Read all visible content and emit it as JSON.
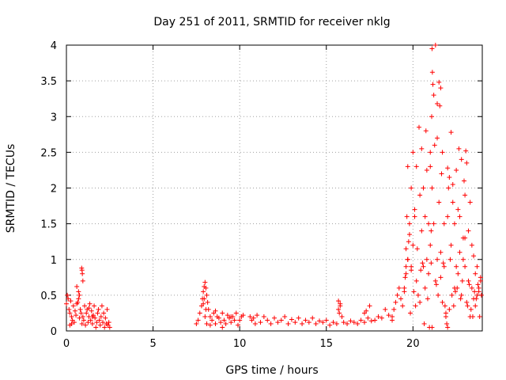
{
  "chart_data": {
    "type": "scatter",
    "title": "Day 251 of 2011, SRMTID for receiver nklg",
    "xlabel": "GPS time / hours",
    "ylabel": "SRMTID / TECUs",
    "xlim": [
      0,
      24
    ],
    "ylim": [
      0,
      4
    ],
    "xticks": [
      0,
      5,
      10,
      15,
      20
    ],
    "xtick_labels": [
      "0",
      "5",
      "10",
      "15",
      "20"
    ],
    "yticks": [
      0,
      0.5,
      1,
      1.5,
      2,
      2.5,
      3,
      3.5,
      4
    ],
    "ytick_labels": [
      "0",
      "0.5",
      "1",
      "1.5",
      "2",
      "2.5",
      "3",
      "3.5",
      "4"
    ],
    "grid": true,
    "marker": "+",
    "series": [
      {
        "name": "SRMTID",
        "color": "#ff0000",
        "x": [
          0.0,
          0.05,
          0.1,
          0.15,
          0.2,
          0.25,
          0.3,
          0.35,
          0.4,
          0.45,
          0.5,
          0.55,
          0.6,
          0.65,
          0.7,
          0.75,
          0.8,
          0.85,
          0.9,
          0.95,
          1.0,
          1.05,
          1.1,
          1.15,
          1.2,
          1.25,
          1.3,
          1.35,
          1.4,
          1.45,
          1.5,
          1.55,
          1.6,
          1.65,
          1.7,
          1.75,
          1.8,
          1.85,
          1.9,
          1.95,
          2.0,
          2.05,
          2.1,
          2.15,
          2.2,
          2.25,
          2.3,
          2.35,
          2.4,
          2.45,
          2.5,
          0.88,
          0.9,
          0.92,
          0.95,
          0.7,
          0.75,
          0.6,
          0.3,
          0.2,
          1.3,
          1.5,
          7.5,
          7.6,
          7.7,
          7.8,
          7.85,
          7.9,
          7.95,
          8.0,
          8.05,
          8.1,
          8.15,
          8.2,
          8.3,
          8.4,
          8.5,
          8.6,
          8.7,
          8.8,
          8.9,
          9.0,
          9.1,
          9.2,
          9.3,
          9.4,
          9.5,
          9.6,
          9.7,
          9.8,
          9.9,
          10.0,
          10.1,
          10.2,
          8.0,
          8.05,
          7.95,
          8.1,
          7.9,
          8.3,
          8.6,
          9.0,
          9.5,
          10.6,
          10.7,
          10.8,
          10.9,
          11.0,
          11.2,
          11.4,
          11.6,
          11.8,
          12.0,
          12.2,
          12.4,
          12.6,
          12.8,
          13.0,
          13.2,
          13.4,
          13.6,
          13.8,
          14.0,
          14.2,
          14.4,
          14.6,
          14.8,
          15.0,
          15.2,
          15.4,
          15.6,
          15.7,
          15.8,
          15.9,
          16.0,
          16.2,
          16.4,
          16.6,
          16.8,
          17.0,
          17.2,
          17.4,
          17.6,
          17.8,
          18.0,
          18.2,
          18.4,
          18.6,
          18.8,
          15.7,
          15.75,
          15.8,
          17.2,
          17.3,
          17.5,
          18.8,
          18.9,
          19.0,
          19.1,
          19.2,
          19.3,
          19.4,
          19.5,
          19.6,
          19.7,
          19.8,
          19.9,
          20.0,
          20.1,
          20.2,
          20.3,
          20.4,
          20.5,
          20.6,
          20.7,
          20.8,
          20.9,
          21.0,
          21.1,
          21.2,
          21.3,
          21.4,
          21.5,
          21.6,
          21.7,
          21.8,
          21.9,
          22.0,
          22.1,
          22.2,
          22.3,
          22.4,
          22.5,
          22.6,
          22.7,
          22.8,
          22.9,
          23.0,
          23.1,
          23.2,
          23.3,
          23.4,
          23.5,
          23.6,
          23.7,
          23.8,
          23.9,
          19.6,
          19.65,
          19.7,
          19.9,
          20.0,
          20.1,
          20.2,
          20.35,
          20.4,
          20.5,
          20.6,
          20.7,
          20.75,
          20.8,
          20.9,
          21.0,
          21.05,
          21.08,
          21.1,
          21.12,
          21.15,
          21.2,
          21.25,
          21.3,
          21.4,
          21.5,
          21.55,
          21.6,
          21.65,
          21.7,
          21.8,
          22.0,
          22.05,
          22.1,
          22.15,
          22.2,
          22.25,
          22.3,
          22.4,
          22.5,
          22.6,
          22.65,
          22.7,
          22.8,
          22.9,
          22.95,
          23.0,
          23.05,
          23.1,
          23.2,
          23.3,
          23.4,
          23.5,
          23.6,
          23.7,
          23.8,
          23.9,
          19.5,
          19.55,
          19.6,
          19.7,
          19.75,
          19.8,
          19.85,
          19.9,
          20.05,
          20.15,
          20.25,
          20.45,
          20.55,
          20.65,
          20.85,
          20.95,
          21.05,
          21.35,
          21.45,
          21.6,
          21.75,
          21.85,
          21.9,
          21.95,
          22.35,
          22.45,
          22.55,
          22.75,
          22.85,
          23.15,
          23.25,
          23.35,
          23.45,
          23.55,
          23.65,
          23.75,
          23.85,
          23.95,
          21.0,
          21.1,
          21.4,
          22.0,
          23.0
        ],
        "y": [
          0.38,
          0.5,
          0.45,
          0.3,
          0.25,
          0.42,
          0.2,
          0.15,
          0.35,
          0.12,
          0.28,
          0.22,
          0.62,
          0.4,
          0.55,
          0.18,
          0.3,
          0.25,
          0.1,
          0.2,
          0.15,
          0.35,
          0.08,
          0.25,
          0.3,
          0.12,
          0.2,
          0.38,
          0.15,
          0.28,
          0.1,
          0.22,
          0.35,
          0.18,
          0.05,
          0.12,
          0.25,
          0.3,
          0.15,
          0.08,
          0.2,
          0.35,
          0.12,
          0.25,
          0.05,
          0.18,
          0.1,
          0.3,
          0.08,
          0.12,
          0.05,
          0.88,
          0.85,
          0.8,
          0.7,
          0.45,
          0.5,
          0.38,
          0.1,
          0.08,
          0.32,
          0.2,
          0.1,
          0.15,
          0.25,
          0.35,
          0.45,
          0.55,
          0.62,
          0.68,
          0.6,
          0.5,
          0.4,
          0.3,
          0.2,
          0.15,
          0.25,
          0.1,
          0.2,
          0.18,
          0.12,
          0.25,
          0.15,
          0.1,
          0.22,
          0.18,
          0.12,
          0.2,
          0.15,
          0.25,
          0.08,
          0.15,
          0.2,
          0.22,
          0.2,
          0.3,
          0.45,
          0.1,
          0.38,
          0.08,
          0.28,
          0.05,
          0.2,
          0.2,
          0.15,
          0.18,
          0.1,
          0.22,
          0.12,
          0.2,
          0.15,
          0.1,
          0.18,
          0.12,
          0.15,
          0.2,
          0.1,
          0.16,
          0.12,
          0.18,
          0.1,
          0.15,
          0.12,
          0.18,
          0.1,
          0.14,
          0.12,
          0.15,
          0.08,
          0.12,
          0.1,
          0.3,
          0.38,
          0.2,
          0.12,
          0.1,
          0.14,
          0.12,
          0.1,
          0.15,
          0.12,
          0.18,
          0.14,
          0.15,
          0.2,
          0.18,
          0.3,
          0.22,
          0.15,
          0.42,
          0.25,
          0.35,
          0.25,
          0.28,
          0.35,
          0.2,
          0.3,
          0.4,
          0.5,
          0.6,
          0.45,
          0.35,
          0.55,
          0.8,
          1.0,
          1.5,
          0.9,
          1.2,
          1.6,
          0.7,
          0.5,
          0.4,
          1.4,
          0.9,
          0.6,
          1.0,
          0.8,
          1.2,
          0.05,
          1.5,
          0.7,
          1.0,
          1.8,
          1.1,
          0.4,
          0.9,
          0.2,
          0.05,
          0.3,
          1.2,
          1.8,
          0.6,
          0.9,
          0.8,
          1.1,
          0.5,
          1.0,
          1.3,
          0.4,
          0.7,
          0.2,
          0.6,
          0.45,
          0.35,
          0.5,
          0.55,
          0.75,
          1.15,
          1.6,
          2.3,
          2.0,
          2.5,
          1.7,
          2.3,
          2.85,
          1.9,
          2.55,
          2.0,
          1.6,
          2.8,
          2.25,
          1.5,
          2.3,
          1.4,
          3.0,
          3.95,
          3.62,
          3.45,
          3.3,
          2.6,
          4.0,
          3.18,
          3.48,
          3.15,
          3.4,
          2.2,
          2.5,
          1.5,
          2.28,
          2.0,
          2.15,
          1.0,
          2.78,
          0.5,
          2.05,
          1.5,
          2.25,
          1.7,
          2.55,
          1.6,
          2.4,
          1.3,
          2.1,
          1.9,
          2.52,
          2.35,
          1.4,
          1.8,
          1.2,
          1.05,
          0.8,
          0.9,
          0.6,
          0.7,
          0.6,
          0.75,
          0.9,
          1.0,
          1.25,
          1.35,
          0.25,
          0.85,
          0.55,
          0.35,
          1.15,
          0.85,
          0.95,
          0.1,
          0.45,
          0.05,
          0.95,
          0.65,
          0.5,
          0.75,
          0.95,
          0.35,
          0.25,
          0.1,
          0.35,
          0.55,
          0.6,
          0.45,
          0.7,
          0.35,
          0.65,
          0.3,
          0.2,
          0.55,
          0.45,
          0.65,
          0.2,
          0.5,
          2.5,
          2.0,
          2.7,
          1.6,
          0.9
        ]
      }
    ]
  }
}
